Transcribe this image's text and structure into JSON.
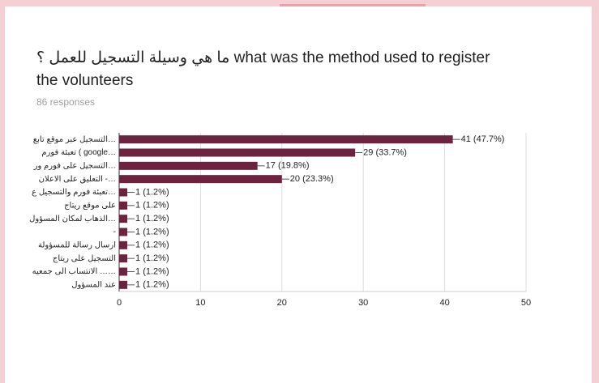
{
  "chart_data": {
    "type": "bar",
    "orientation": "horizontal",
    "title": "ما هي وسيلة التسجيل للعمل ؟ what was the method used to register the volunteers",
    "subtitle": "86 responses",
    "categories": [
      "التسجيل عبر موقع تابع…",
      "تعبئة فورم ( google…",
      "التسجيل على فورم ور…",
      "التعليق على الاعلان -…",
      "تعبئة فورم والتسجيل ع…",
      "على موقع ريتاج",
      "الذهاب لمكان المسؤول…",
      "-",
      "ارسال رسالة للمسؤولة",
      "التسجيل على ريتاج",
      "الانتساب الى جمعيه ……",
      "عند المسؤول"
    ],
    "values": [
      41,
      29,
      17,
      20,
      1,
      1,
      1,
      1,
      1,
      1,
      1,
      1
    ],
    "value_labels": [
      "41 (47.7%)",
      "29 (33.7%)",
      "17 (19.8%)",
      "20 (23.3%)",
      "1 (1.2%)",
      "1 (1.2%)",
      "1 (1.2%)",
      "1 (1.2%)",
      "1 (1.2%)",
      "1 (1.2%)",
      "1 (1.2%)",
      "1 (1.2%)"
    ],
    "color": "#6d2340",
    "xlim": [
      0,
      50
    ],
    "xticks": [
      0,
      10,
      20,
      30,
      40,
      50
    ],
    "grid": true
  }
}
